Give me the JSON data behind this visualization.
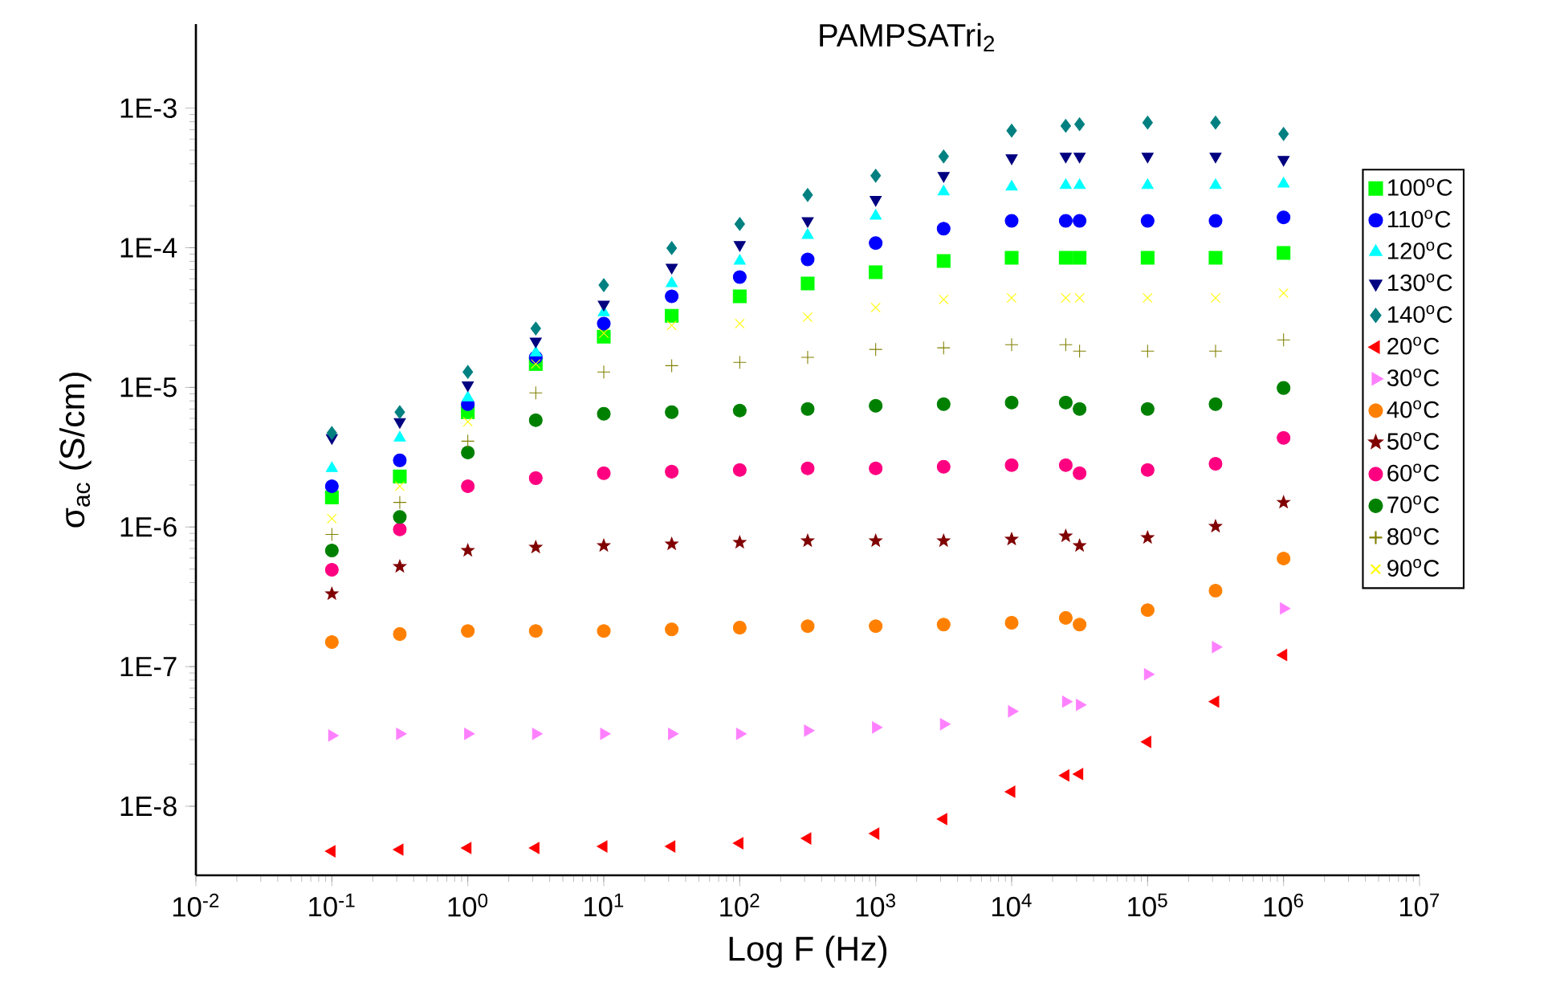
{
  "chart_data": {
    "type": "scatter",
    "title": "PAMPSATri$_{2}$",
    "xlabel": "Log F (Hz)",
    "ylabel": "σ$_{ac}$ (S/cm)",
    "log": "xy",
    "legend": "right",
    "grid": false,
    "xlim": [
      0.01,
      10000000
    ],
    "ylim": [
      3.2e-09,
      0.004
    ],
    "xticks": [
      {
        "value": 0.01,
        "label": "10$^{-2}$"
      },
      {
        "value": 0.1,
        "label": "10$^{-1}$"
      },
      {
        "value": 1,
        "label": "10$^{0}$"
      },
      {
        "value": 10,
        "label": "10$^{1}$"
      },
      {
        "value": 100,
        "label": "10$^{2}$"
      },
      {
        "value": 1000,
        "label": "10$^{3}$"
      },
      {
        "value": 10000,
        "label": "10$^{4}$"
      },
      {
        "value": 100000,
        "label": "10$^{5}$"
      },
      {
        "value": 1000000,
        "label": "10$^{6}$"
      },
      {
        "value": 10000000,
        "label": "10$^{7}$"
      }
    ],
    "yticks": [
      {
        "value": 1e-08,
        "label": "1E-8"
      },
      {
        "value": 1e-07,
        "label": "1E-7"
      },
      {
        "value": 1e-06,
        "label": "1E-6"
      },
      {
        "value": 1e-05,
        "label": "1E-5"
      },
      {
        "value": 0.0001,
        "label": "1E-4"
      },
      {
        "value": 0.001,
        "label": "1E-3"
      }
    ],
    "x": [
      0.1,
      0.316,
      1,
      3.16,
      10,
      31.6,
      100,
      316,
      1000,
      3160,
      10000,
      25000,
      31600,
      100000,
      316000,
      1000000
    ],
    "series": [
      {
        "name": "100$^{o}$C",
        "color": "#00ff00",
        "marker": "square",
        "values": [
          1.63e-06,
          2.3e-06,
          6.65e-06,
          1.47e-05,
          2.31e-05,
          3.26e-05,
          4.49e-05,
          5.55e-05,
          6.68e-05,
          8.04e-05,
          8.48e-05,
          8.48e-05,
          8.48e-05,
          8.48e-05,
          8.48e-05,
          9.19e-05
        ]
      },
      {
        "name": "110$^{o}$C",
        "color": "#0000ff",
        "marker": "circle",
        "values": [
          1.96e-06,
          3e-06,
          7.59e-06,
          1.64e-05,
          2.86e-05,
          4.49e-05,
          6.17e-05,
          8.26e-05,
          0.000108,
          0.000137,
          0.000156,
          0.000156,
          0.000156,
          0.000156,
          0.000156,
          0.000165
        ]
      },
      {
        "name": "120$^{o}$C",
        "color": "#00ffff",
        "marker": "triangle",
        "values": [
          2.63e-06,
          4.35e-06,
          8.44e-06,
          1.77e-05,
          3.44e-05,
          5.55e-05,
          8.04e-05,
          0.000123,
          0.000169,
          0.000252,
          0.000273,
          0.00028,
          0.00028,
          0.00028,
          0.00028,
          0.000287
        ]
      },
      {
        "name": "130$^{o}$C",
        "color": "#000080",
        "marker": "triangle-down",
        "values": [
          4.35e-06,
          5.67e-06,
          1.04e-05,
          2.14e-05,
          3.93e-05,
          7.23e-05,
          0.000105,
          0.000156,
          0.000221,
          0.000328,
          0.000439,
          0.000451,
          0.000451,
          0.000451,
          0.000451,
          0.000428
        ]
      },
      {
        "name": "140$^{o}$C",
        "color": "#008080",
        "marker": "diamond",
        "values": [
          4.71e-06,
          6.65e-06,
          1.29e-05,
          2.64e-05,
          5.4e-05,
          9.95e-05,
          0.000148,
          0.000239,
          0.000328,
          0.000451,
          0.00069,
          0.000747,
          0.000767,
          0.000788,
          0.000788,
          0.000654
        ]
      },
      {
        "name": "20$^{o}$C",
        "color": "#ff0000",
        "marker": "triangle-left",
        "values": [
          4.76e-09,
          4.89e-09,
          5.02e-09,
          5.02e-09,
          5.15e-09,
          5.15e-09,
          5.43e-09,
          5.88e-09,
          6.37e-09,
          8.09e-09,
          1.27e-08,
          1.66e-08,
          1.7e-08,
          2.89e-08,
          5.61e-08,
          1.21e-07
        ]
      },
      {
        "name": "30$^{o}$C",
        "color": "#ff80ff",
        "marker": "triangle-right",
        "values": [
          3.21e-08,
          3.3e-08,
          3.3e-08,
          3.3e-08,
          3.3e-08,
          3.3e-08,
          3.3e-08,
          3.48e-08,
          3.67e-08,
          3.87e-08,
          4.78e-08,
          5.61e-08,
          5.32e-08,
          8.81e-08,
          1.38e-07,
          2.61e-07
        ]
      },
      {
        "name": "40$^{o}$C",
        "color": "#ff8000",
        "marker": "circle",
        "values": [
          1.5e-07,
          1.71e-07,
          1.8e-07,
          1.8e-07,
          1.8e-07,
          1.85e-07,
          1.9e-07,
          1.95e-07,
          1.95e-07,
          2e-07,
          2.06e-07,
          2.23e-07,
          2e-07,
          2.54e-07,
          3.5e-07,
          5.95e-07
        ]
      },
      {
        "name": "50$^{o}$C",
        "color": "#800000",
        "marker": "star",
        "values": [
          3.32e-07,
          5.21e-07,
          6.79e-07,
          7.16e-07,
          7.35e-07,
          7.55e-07,
          7.75e-07,
          7.96e-07,
          7.96e-07,
          7.96e-07,
          8.17e-07,
          8.62e-07,
          7.35e-07,
          8.39e-07,
          1.01e-06,
          1.5e-06
        ]
      },
      {
        "name": "60$^{o}$C",
        "color": "#ff0080",
        "values": [
          4.94e-07,
          9.6e-07,
          1.96e-06,
          2.24e-06,
          2.43e-06,
          2.49e-06,
          2.56e-06,
          2.63e-06,
          2.63e-06,
          2.7e-06,
          2.77e-06,
          2.77e-06,
          2.43e-06,
          2.56e-06,
          2.84e-06,
          4.35e-06
        ]
      },
      {
        "name": "70$^{o}$C",
        "color": "#008000",
        "marker": "circle",
        "values": [
          6.79e-07,
          1.18e-06,
          3.42e-06,
          5.82e-06,
          6.47e-06,
          6.65e-06,
          6.83e-06,
          7.01e-06,
          7.39e-06,
          7.59e-06,
          7.79e-06,
          7.79e-06,
          7.01e-06,
          7.01e-06,
          7.59e-06,
          9.9e-06
        ]
      },
      {
        "name": "80$^{o}$C",
        "color": "#808000",
        "marker": "plus",
        "values": [
          8.85e-07,
          1.5e-06,
          4.12e-06,
          9.14e-06,
          1.29e-05,
          1.43e-05,
          1.51e-05,
          1.64e-05,
          1.87e-05,
          1.92e-05,
          2.02e-05,
          2.02e-05,
          1.82e-05,
          1.82e-05,
          1.82e-05,
          2.19e-05
        ]
      },
      {
        "name": "90$^{o}$C",
        "color": "#ffff00",
        "marker": "cross",
        "values": [
          1.15e-06,
          1.96e-06,
          5.67e-06,
          1.47e-05,
          2.44e-05,
          2.78e-05,
          2.86e-05,
          3.18e-05,
          3.73e-05,
          4.26e-05,
          4.37e-05,
          4.37e-05,
          4.37e-05,
          4.37e-05,
          4.37e-05,
          4.73e-05
        ]
      }
    ]
  }
}
